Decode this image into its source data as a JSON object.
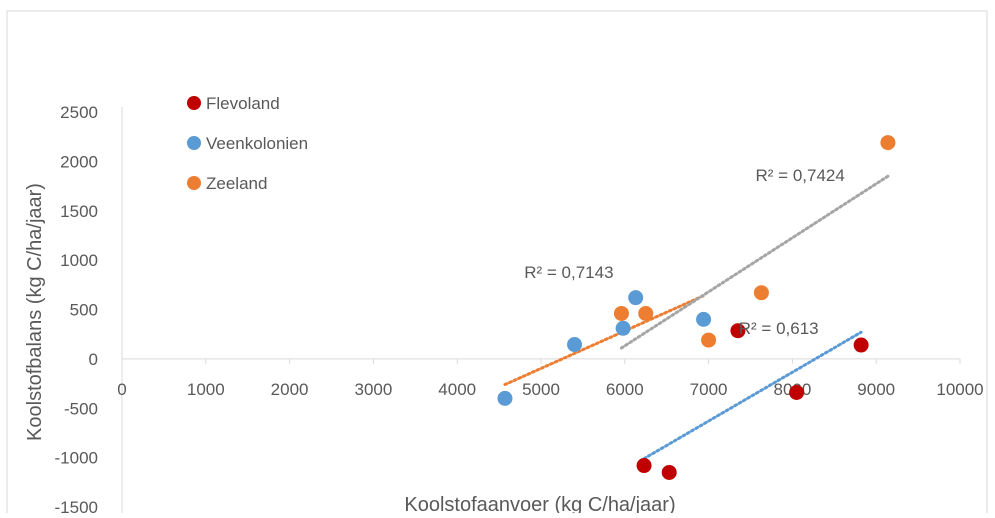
{
  "chart_data": {
    "type": "scatter",
    "title": "",
    "xlabel": "Koolstofaanvoer (kg C/ha/jaar)",
    "ylabel": "Koolstofbalans (kg C/ha/jaar)",
    "xlim": [
      0,
      10000
    ],
    "ylim": [
      -1500,
      2500
    ],
    "x_ticks": [
      "0",
      "1000",
      "2000",
      "3000",
      "4000",
      "5000",
      "6000",
      "7000",
      "8000",
      "9000",
      "10000"
    ],
    "y_ticks": [
      "2500",
      "2000",
      "1500",
      "1000",
      "500",
      "0",
      "-500",
      "-1000",
      "-1500"
    ],
    "x_tick_values": [
      0,
      1000,
      2000,
      3000,
      4000,
      5000,
      6000,
      7000,
      8000,
      9000,
      10000
    ],
    "y_tick_values": [
      2500,
      2000,
      1500,
      1000,
      500,
      0,
      -500,
      -1000,
      -1500
    ],
    "grid": false,
    "legend_position": "top-left",
    "series": [
      {
        "name": "Flevoland",
        "color": "#C00000",
        "points": [
          [
            6230,
            -1080
          ],
          [
            6530,
            -1150
          ],
          [
            7350,
            285
          ],
          [
            8050,
            -340
          ],
          [
            8820,
            140
          ]
        ]
      },
      {
        "name": "Veenkolonien",
        "color": "#5B9BD5",
        "points": [
          [
            4570,
            -400
          ],
          [
            5400,
            145
          ],
          [
            5980,
            310
          ],
          [
            6130,
            620
          ],
          [
            6940,
            400
          ]
        ]
      },
      {
        "name": "Zeeland",
        "color": "#ED7D31",
        "points": [
          [
            5960,
            460
          ],
          [
            6250,
            460
          ],
          [
            7000,
            190
          ],
          [
            7630,
            670
          ],
          [
            9140,
            2190
          ]
        ]
      }
    ],
    "trendlines": [
      {
        "color": "#ED7D31",
        "from": [
          4570,
          -260
        ],
        "to": [
          6940,
          640
        ]
      },
      {
        "color": "#A5A5A5",
        "from": [
          5960,
          110
        ],
        "to": [
          9140,
          1850
        ]
      },
      {
        "color": "#5B9BD5",
        "from": [
          6230,
          -1010
        ],
        "to": [
          8820,
          270
        ]
      }
    ],
    "annotations": [
      {
        "text": "R² = 0,7143",
        "x": 4800,
        "y": 820,
        "color": "#595959"
      },
      {
        "text": "R² = 0,7424",
        "x": 7560,
        "y": 1800,
        "color": "#595959"
      },
      {
        "text": "R² = 0,613",
        "x": 7360,
        "y": 250,
        "color": "#595959"
      }
    ]
  }
}
